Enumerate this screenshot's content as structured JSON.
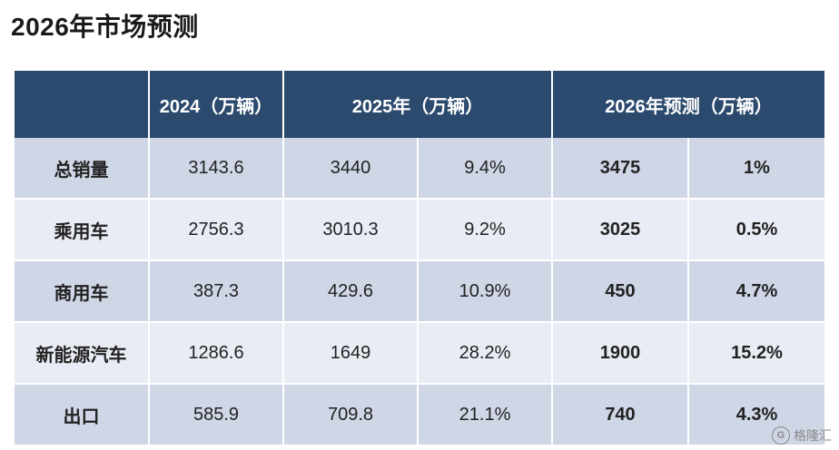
{
  "title": "2026年市场预测",
  "table": {
    "headers": [
      "",
      "2024（万辆）",
      "2025年（万辆）",
      "2026年预测（万辆）"
    ],
    "rows": [
      {
        "label": "总销量",
        "v2024": "3143.6",
        "v2025": "3440",
        "g2025": "9.4%",
        "v2026": "3475",
        "g2026": "1%"
      },
      {
        "label": "乘用车",
        "v2024": "2756.3",
        "v2025": "3010.3",
        "g2025": "9.2%",
        "v2026": "3025",
        "g2026": "0.5%"
      },
      {
        "label": "商用车",
        "v2024": "387.3",
        "v2025": "429.6",
        "g2025": "10.9%",
        "v2026": "450",
        "g2026": "4.7%"
      },
      {
        "label": "新能源汽车",
        "v2024": "1286.6",
        "v2025": "1649",
        "g2025": "28.2%",
        "v2026": "1900",
        "g2026": "15.2%"
      },
      {
        "label": "出口",
        "v2024": "585.9",
        "v2025": "709.8",
        "g2025": "21.1%",
        "v2026": "740",
        "g2026": "4.3%"
      }
    ]
  },
  "watermark": {
    "icon": "G",
    "text": "格隆汇"
  },
  "colors": {
    "header_bg": "#2c4a6e",
    "row_dark": "#cfd6e6",
    "row_light": "#e9ecf4"
  }
}
